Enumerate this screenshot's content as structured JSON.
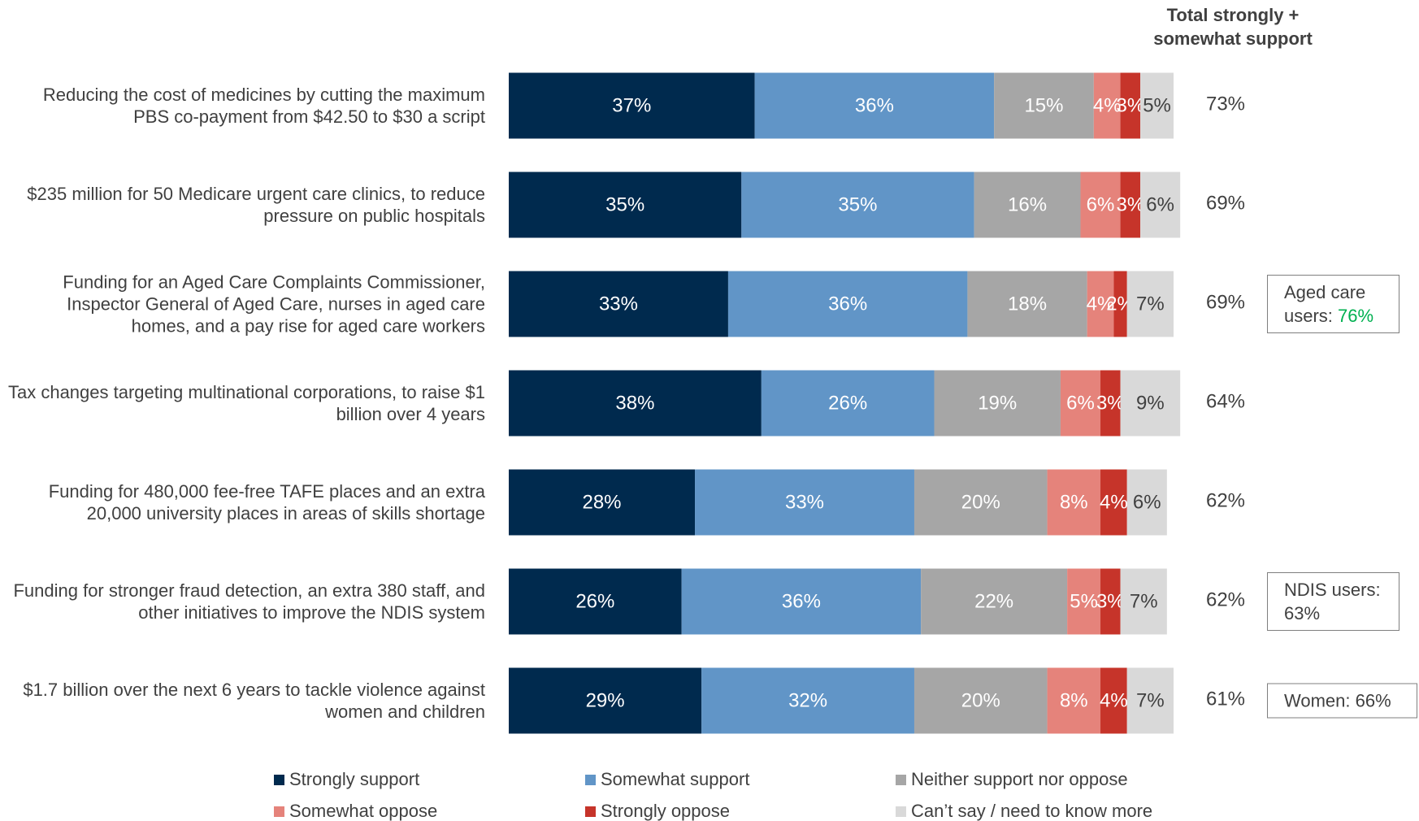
{
  "chart_data": {
    "type": "stacked-bar-horizontal",
    "categories": [
      "Reducing the cost of medicines by cutting the maximum PBS co-payment from $42.50 to $30 a script",
      "$235 million for 50 Medicare urgent care clinics, to reduce pressure on public hospitals",
      "Funding for an Aged Care Complaints Commissioner, Inspector General of Aged Care, nurses in aged care homes, and a pay rise for aged care workers",
      "Tax changes targeting multinational corporations, to raise $1 billion over 4 years",
      "Funding for 480,000 fee-free TAFE places and an extra 20,000 university places in areas of skills shortage",
      "Funding for stronger fraud detection, an extra 380 staff, and other initiatives to improve the NDIS system",
      "$1.7 billion over the next 6 years to tackle violence against women and children"
    ],
    "xlim": [
      0,
      100
    ],
    "series": [
      {
        "name": "Strongly support",
        "color": "#002a4e",
        "label_color": "#ffffff",
        "values": [
          37,
          35,
          33,
          38,
          28,
          26,
          29
        ],
        "value_labels": [
          "37%",
          "35%",
          "33%",
          "38%",
          "28%",
          "26%",
          "29%"
        ]
      },
      {
        "name": "Somewhat support",
        "color": "#6195c7",
        "label_color": "#ffffff",
        "values": [
          36,
          35,
          36,
          26,
          33,
          36,
          32
        ],
        "value_labels": [
          "36%",
          "35%",
          "36%",
          "26%",
          "33%",
          "36%",
          "32%"
        ]
      },
      {
        "name": "Neither support nor oppose",
        "color": "#a6a6a6",
        "label_color": "#ffffff",
        "values": [
          15,
          16,
          18,
          19,
          20,
          22,
          20
        ],
        "value_labels": [
          "15%",
          "16%",
          "18%",
          "19%",
          "20%",
          "22%",
          "20%"
        ]
      },
      {
        "name": "Somewhat oppose",
        "color": "#e5837b",
        "label_color": "#ffffff",
        "values": [
          4,
          6,
          4,
          6,
          8,
          5,
          8
        ],
        "value_labels": [
          "4%",
          "6%",
          "4%",
          "6%",
          "8%",
          "5%",
          "8%"
        ]
      },
      {
        "name": "Strongly oppose",
        "color": "#c6342a",
        "label_color": "#ffffff",
        "values": [
          3,
          3,
          2,
          3,
          4,
          3,
          4
        ],
        "value_labels": [
          "3%",
          "3%",
          "2%",
          "3%",
          "4%",
          "3%",
          "4%"
        ]
      },
      {
        "name": "Can’t say / need to know more",
        "color": "#d9d9d9",
        "label_color": "#404040",
        "values": [
          5,
          6,
          7,
          9,
          6,
          7,
          7
        ],
        "value_labels": [
          "5%",
          "6%",
          "7%",
          "9%",
          "6%",
          "7%",
          "7%"
        ]
      }
    ],
    "total": {
      "title": "Total strongly + somewhat support",
      "values": [
        73,
        69,
        69,
        64,
        62,
        62,
        61
      ],
      "value_labels": [
        "73%",
        "69%",
        "69%",
        "64%",
        "62%",
        "62%",
        "61%"
      ]
    },
    "callouts": [
      null,
      null,
      {
        "text": "Aged care users:",
        "value": 76,
        "value_label": "76%",
        "value_color": "#00b050"
      },
      null,
      null,
      {
        "text": "NDIS users:",
        "value": 63,
        "value_label": "63%"
      },
      {
        "text": "Women:",
        "value": 66,
        "value_label": "66%"
      }
    ]
  }
}
